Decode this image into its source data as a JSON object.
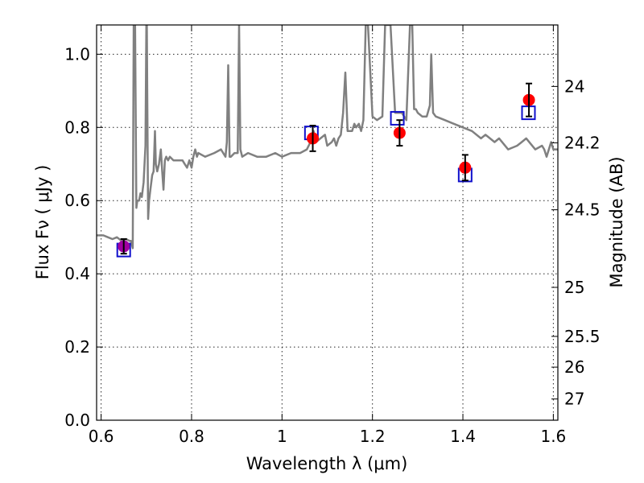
{
  "chart_data": {
    "type": "line",
    "title": "",
    "xlabel": "Wavelength  λ (μm)",
    "ylabel": "Flux  Fν ( μJy )",
    "ylabel_right": "Magnitude (AB)",
    "xlim": [
      0.59,
      1.61
    ],
    "ylim": [
      0.0,
      1.08
    ],
    "grid": true,
    "x_ticks": [
      0.6,
      0.8,
      1.0,
      1.2,
      1.4,
      1.6
    ],
    "x_tick_labels": [
      "0.6",
      "0.8",
      "1",
      "1.2",
      "1.4",
      "1.6"
    ],
    "y_ticks": [
      0.0,
      0.2,
      0.4,
      0.6,
      0.8,
      1.0
    ],
    "y_tick_labels": [
      "0.0",
      "0.2",
      "0.4",
      "0.6",
      "0.8",
      "1.0"
    ],
    "right_ticks": [
      {
        "label": "24",
        "flux": 0.912
      },
      {
        "label": "24.2",
        "flux": 0.758
      },
      {
        "label": "24.5",
        "flux": 0.575
      },
      {
        "label": "25",
        "flux": 0.363
      },
      {
        "label": "25.5",
        "flux": 0.229
      },
      {
        "label": "26",
        "flux": 0.145
      },
      {
        "label": "27",
        "flux": 0.058
      }
    ],
    "series": [
      {
        "type": "line",
        "color": "#808080",
        "x": [
          0.59,
          0.605,
          0.615,
          0.625,
          0.635,
          0.645,
          0.655,
          0.663,
          0.666,
          0.668,
          0.67,
          0.672,
          0.675,
          0.678,
          0.68,
          0.684,
          0.687,
          0.69,
          0.694,
          0.698,
          0.7,
          0.701,
          0.702,
          0.704,
          0.706,
          0.709,
          0.713,
          0.716,
          0.719,
          0.721,
          0.724,
          0.728,
          0.732,
          0.735,
          0.738,
          0.741,
          0.744,
          0.748,
          0.752,
          0.76,
          0.77,
          0.78,
          0.785,
          0.79,
          0.795,
          0.8,
          0.804,
          0.808,
          0.81,
          0.812,
          0.815,
          0.83,
          0.85,
          0.865,
          0.875,
          0.878,
          0.881,
          0.884,
          0.887,
          0.895,
          0.902,
          0.905,
          0.908,
          0.912,
          0.925,
          0.945,
          0.965,
          0.985,
          1.0,
          1.02,
          1.04,
          1.055,
          1.063,
          1.066,
          1.07,
          1.075,
          1.085,
          1.095,
          1.1,
          1.11,
          1.115,
          1.12,
          1.125,
          1.13,
          1.135,
          1.14,
          1.145,
          1.155,
          1.16,
          1.164,
          1.17,
          1.175,
          1.18,
          1.185,
          1.19,
          1.2,
          1.21,
          1.222,
          1.228,
          1.24,
          1.25,
          1.265,
          1.275,
          1.283,
          1.288,
          1.292,
          1.296,
          1.3,
          1.31,
          1.32,
          1.327,
          1.33,
          1.334,
          1.34,
          1.36,
          1.38,
          1.4,
          1.42,
          1.44,
          1.45,
          1.46,
          1.47,
          1.48,
          1.5,
          1.52,
          1.53,
          1.54,
          1.56,
          1.575,
          1.58,
          1.585,
          1.59,
          1.595,
          1.6,
          1.61
        ],
        "y": [
          0.505,
          0.505,
          0.5,
          0.495,
          0.5,
          0.49,
          0.495,
          0.49,
          0.49,
          0.48,
          0.47,
          1.08,
          1.08,
          0.58,
          0.6,
          0.6,
          0.62,
          0.61,
          0.65,
          0.75,
          1.08,
          1.08,
          0.9,
          0.55,
          0.6,
          0.63,
          0.67,
          0.68,
          0.79,
          0.7,
          0.68,
          0.7,
          0.74,
          0.68,
          0.63,
          0.71,
          0.72,
          0.71,
          0.72,
          0.71,
          0.71,
          0.71,
          0.7,
          0.69,
          0.71,
          0.69,
          0.72,
          0.74,
          0.73,
          0.72,
          0.73,
          0.72,
          0.73,
          0.74,
          0.72,
          0.76,
          0.97,
          0.72,
          0.72,
          0.73,
          0.73,
          1.08,
          0.74,
          0.72,
          0.73,
          0.72,
          0.72,
          0.73,
          0.72,
          0.73,
          0.73,
          0.74,
          0.76,
          0.77,
          0.79,
          0.76,
          0.77,
          0.78,
          0.75,
          0.76,
          0.77,
          0.75,
          0.77,
          0.78,
          0.84,
          0.95,
          0.79,
          0.79,
          0.81,
          0.8,
          0.81,
          0.79,
          0.82,
          1.08,
          1.08,
          0.83,
          0.82,
          0.83,
          1.08,
          1.08,
          0.84,
          0.84,
          0.82,
          1.08,
          1.08,
          0.85,
          0.85,
          0.84,
          0.83,
          0.83,
          0.86,
          1.0,
          0.84,
          0.83,
          0.82,
          0.81,
          0.8,
          0.79,
          0.77,
          0.78,
          0.77,
          0.76,
          0.77,
          0.74,
          0.75,
          0.76,
          0.77,
          0.74,
          0.75,
          0.74,
          0.72,
          0.74,
          0.76,
          0.74,
          0.74
        ]
      },
      {
        "type": "boxes",
        "color": "#1010cc",
        "x": [
          0.65,
          1.065,
          1.255,
          1.405,
          1.545
        ],
        "y": [
          0.465,
          0.785,
          0.825,
          0.67,
          0.84
        ]
      },
      {
        "type": "points-with-errors",
        "color": "#ff0000",
        "first_point_color": "#a000a0",
        "x": [
          0.65,
          1.068,
          1.26,
          1.405,
          1.546
        ],
        "y": [
          0.475,
          0.77,
          0.785,
          0.69,
          0.875
        ],
        "yerr": [
          0.02,
          0.035,
          0.035,
          0.035,
          0.045
        ]
      }
    ]
  }
}
